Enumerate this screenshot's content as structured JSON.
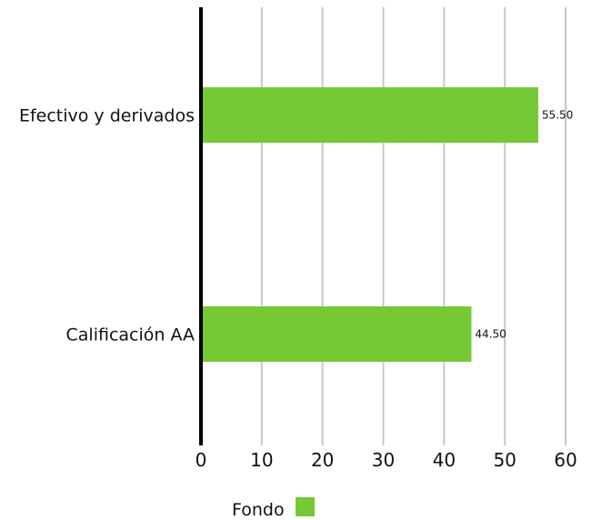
{
  "chart_data": {
    "type": "bar",
    "orientation": "horizontal",
    "categories": [
      "Efectivo y derivados",
      "Calificación AA"
    ],
    "series": [
      {
        "name": "Fondo",
        "values": [
          55.5,
          44.5
        ],
        "value_labels": [
          "55.50",
          "44.50"
        ],
        "color": "#74c935"
      }
    ],
    "xlim": [
      0,
      60
    ],
    "x_ticks": [
      0,
      10,
      20,
      30,
      40,
      50,
      60
    ],
    "x_tick_labels": [
      "0",
      "10",
      "20",
      "30",
      "40",
      "50",
      "60"
    ],
    "grid": "vertical",
    "grid_color": "#c8c8c8",
    "axis_color": "#000000",
    "legend_position": "bottom-center"
  }
}
